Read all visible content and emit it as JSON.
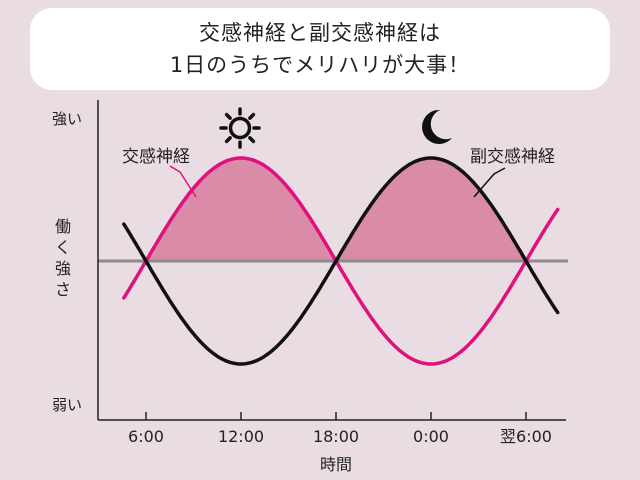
{
  "title": {
    "line1": "交感神経と副交感神経は",
    "line2": "1日のうちでメリハリが大事！"
  },
  "colors": {
    "background": "#e9dde3",
    "sympathetic": "#e0117f",
    "parasympathetic": "#111111",
    "fill": "#d98ba8",
    "baseline": "#8c8c8c"
  },
  "icons": {
    "sun": "sun-icon",
    "moon": "moon-icon"
  },
  "chart_data": {
    "type": "line",
    "xlabel": "時間",
    "ylabel": "働く強さ",
    "y_high_label": "強い",
    "y_low_label": "弱い",
    "x_ticks": [
      {
        "hour": 6,
        "label": "6:00"
      },
      {
        "hour": 12,
        "label": "12:00"
      },
      {
        "hour": 18,
        "label": "18:00"
      },
      {
        "hour": 24,
        "label": "0:00"
      },
      {
        "hour": 30,
        "label": "翌6:00"
      }
    ],
    "x_range_hours": [
      4,
      32.5
    ],
    "y_range": [
      -1.4,
      1.4
    ],
    "series": [
      {
        "name": "交感神経",
        "peak_hour": 12,
        "period_hours": 12,
        "amplitude": 1
      },
      {
        "name": "副交感神経",
        "peak_hour": 24,
        "period_hours": 12,
        "amplitude": 1,
        "shape": "inverse"
      }
    ]
  }
}
